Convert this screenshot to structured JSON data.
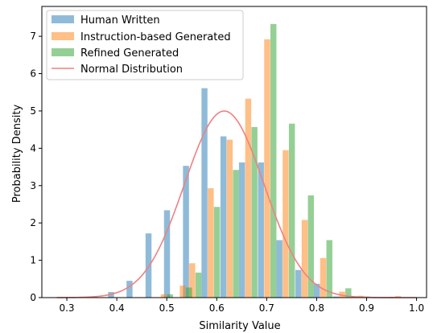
{
  "chart_data": {
    "type": "bar",
    "xlabel": "Similarity Value",
    "ylabel": "Probability Density",
    "xlim": [
      0.25,
      1.02
    ],
    "ylim": [
      0,
      7.8
    ],
    "xticks": [
      "0.3",
      "0.4",
      "0.5",
      "0.6",
      "0.7",
      "0.8",
      "0.9",
      "1.0"
    ],
    "yticks": [
      "0",
      "1",
      "2",
      "3",
      "4",
      "5",
      "6",
      "7"
    ],
    "grid": false,
    "legend_position": "top-left",
    "bin_width": 0.0375,
    "series": [
      {
        "name": "Human Written",
        "color": "#1f77b4",
        "alpha": 0.5,
        "bins": [
          {
            "x": 0.401,
            "y": 0.15
          },
          {
            "x": 0.438,
            "y": 0.45
          },
          {
            "x": 0.476,
            "y": 1.72
          },
          {
            "x": 0.513,
            "y": 2.34
          },
          {
            "x": 0.551,
            "y": 3.53
          },
          {
            "x": 0.588,
            "y": 5.61
          },
          {
            "x": 0.626,
            "y": 4.32
          },
          {
            "x": 0.663,
            "y": 3.62
          },
          {
            "x": 0.701,
            "y": 3.62
          },
          {
            "x": 0.738,
            "y": 1.54
          },
          {
            "x": 0.776,
            "y": 0.74
          },
          {
            "x": 0.813,
            "y": 0.37
          },
          {
            "x": 0.851,
            "y": 0.03
          },
          {
            "x": 0.888,
            "y": 0.02
          },
          {
            "x": 0.963,
            "y": 0.02
          }
        ]
      },
      {
        "name": "Instruction-based Generated",
        "color": "#ff7f0e",
        "alpha": 0.5,
        "bins": [
          {
            "x": 0.494,
            "y": 0.09
          },
          {
            "x": 0.532,
            "y": 0.32
          },
          {
            "x": 0.551,
            "y": 0.92
          },
          {
            "x": 0.588,
            "y": 2.93
          },
          {
            "x": 0.626,
            "y": 4.23
          },
          {
            "x": 0.663,
            "y": 5.33
          },
          {
            "x": 0.701,
            "y": 6.92
          },
          {
            "x": 0.738,
            "y": 3.95
          },
          {
            "x": 0.776,
            "y": 2.08
          },
          {
            "x": 0.813,
            "y": 1.06
          },
          {
            "x": 0.851,
            "y": 0.16
          },
          {
            "x": 0.888,
            "y": 0.05
          },
          {
            "x": 0.963,
            "y": 0.04
          }
        ]
      },
      {
        "name": "Refined Generated",
        "color": "#2ca02c",
        "alpha": 0.5,
        "bins": [
          {
            "x": 0.494,
            "y": 0.09
          },
          {
            "x": 0.532,
            "y": 0.27
          },
          {
            "x": 0.551,
            "y": 0.67
          },
          {
            "x": 0.588,
            "y": 2.43
          },
          {
            "x": 0.626,
            "y": 3.42
          },
          {
            "x": 0.663,
            "y": 4.57
          },
          {
            "x": 0.701,
            "y": 7.33
          },
          {
            "x": 0.738,
            "y": 4.66
          },
          {
            "x": 0.776,
            "y": 2.74
          },
          {
            "x": 0.813,
            "y": 1.54
          },
          {
            "x": 0.851,
            "y": 0.25
          },
          {
            "x": 0.888,
            "y": 0.03
          }
        ]
      }
    ],
    "normal_distribution": {
      "name": "Normal Distribution",
      "color": "#f08080",
      "mean": 0.615,
      "std": 0.0798,
      "x_range": [
        0.28,
        1.0
      ]
    }
  }
}
